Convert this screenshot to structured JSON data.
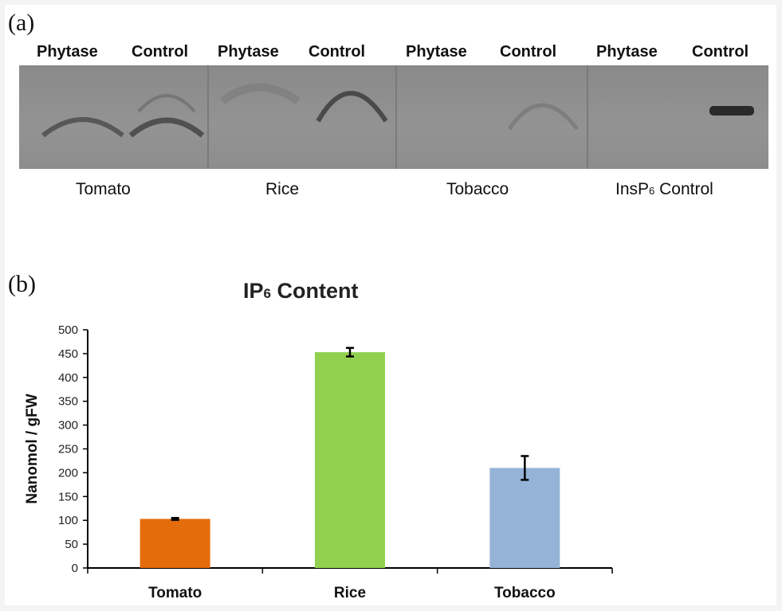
{
  "panel_a": {
    "letter": "(a)",
    "lane_headers": [
      "Phytase",
      "Control",
      "Phytase",
      "Control",
      "Phytase",
      "Control",
      "Phytase",
      "Control"
    ],
    "samples": [
      {
        "name": "Tomato",
        "sub": ""
      },
      {
        "name": "Rice",
        "sub": ""
      },
      {
        "name": "Tobacco",
        "sub": ""
      },
      {
        "name": "InsP",
        "sub": "6",
        "suffix": " Control"
      }
    ]
  },
  "panel_b": {
    "letter": "(b)",
    "title_main": "IP",
    "title_sub": "6",
    "title_rest": " Content"
  },
  "chart_data": {
    "type": "bar",
    "title": "IP6 Content",
    "xlabel": "",
    "ylabel": "Nanomol / gFW",
    "categories": [
      "Tomato",
      "Rice",
      "Tobacco"
    ],
    "values": [
      103,
      453,
      210
    ],
    "errors": [
      2,
      9,
      25
    ],
    "colors": [
      "#e46c0a",
      "#92d050",
      "#95b3d7"
    ],
    "ylim": [
      0,
      500
    ],
    "yticks": [
      0,
      50,
      100,
      150,
      200,
      250,
      300,
      350,
      400,
      450,
      500
    ],
    "grid": false
  }
}
